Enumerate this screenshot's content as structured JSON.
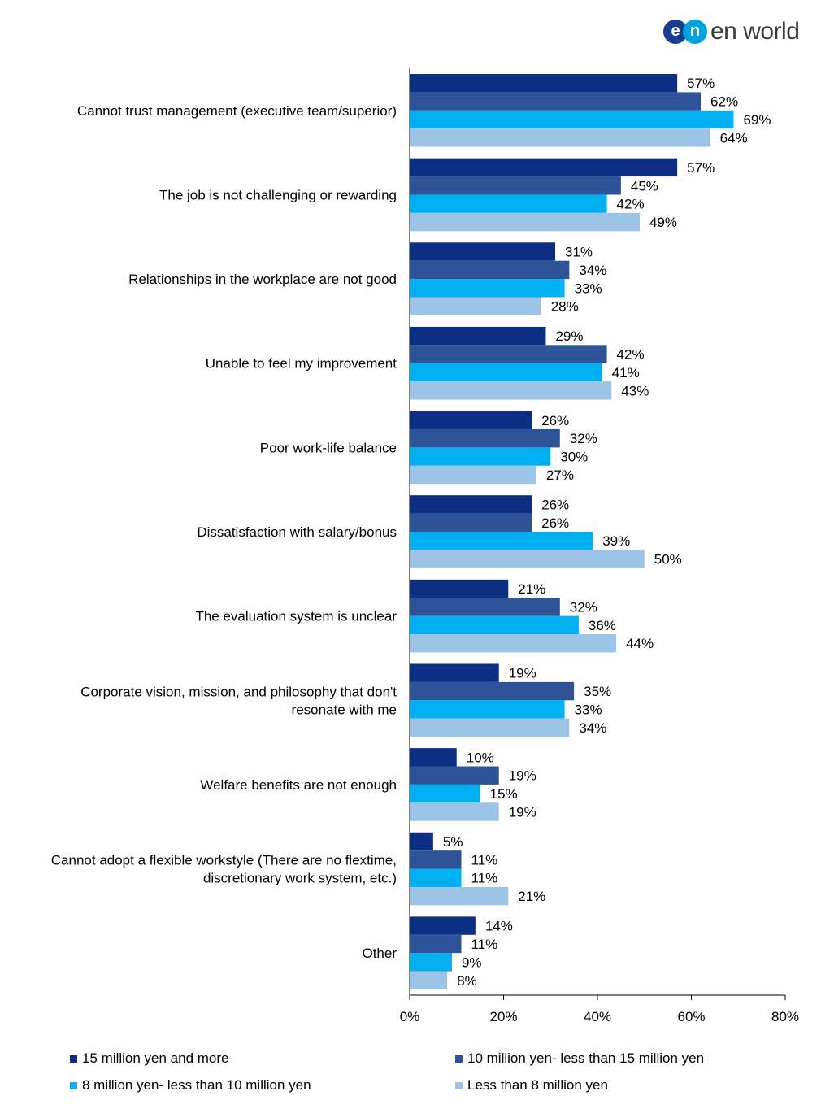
{
  "logo": {
    "mark_e": "e",
    "mark_n": "n",
    "wordmark": "en world",
    "colors": {
      "e": "#1a3c8f",
      "n": "#00a3e0"
    }
  },
  "chart_data": {
    "type": "bar",
    "orientation": "horizontal",
    "categories": [
      "Cannot trust management (executive team/superior)",
      "The job is not challenging or rewarding",
      "Relationships in the workplace are not good",
      "Unable to feel my improvement",
      "Poor work-life balance",
      "Dissatisfaction with salary/bonus",
      "The evaluation system is unclear",
      "Corporate vision, mission, and philosophy that don't resonate with me",
      "Welfare benefits are not enough",
      "Cannot adopt a flexible workstyle (There are no flextime, discretionary work system, etc.)",
      "Other"
    ],
    "category_lines": [
      [
        "Cannot trust management (executive team/superior)"
      ],
      [
        "The job is not challenging or rewarding"
      ],
      [
        "Relationships in the workplace are not good"
      ],
      [
        "Unable to feel my improvement"
      ],
      [
        "Poor work-life balance"
      ],
      [
        "Dissatisfaction with salary/bonus"
      ],
      [
        "The evaluation system is unclear"
      ],
      [
        "Corporate vision, mission, and philosophy that don't",
        "resonate with me"
      ],
      [
        "Welfare benefits are not enough"
      ],
      [
        "Cannot adopt a flexible workstyle (There are no flextime,",
        "discretionary work system, etc.)"
      ],
      [
        "Other"
      ]
    ],
    "series": [
      {
        "name": "15 million yen and more",
        "color": "#0c2f84",
        "values": [
          57,
          57,
          31,
          29,
          26,
          26,
          21,
          19,
          10,
          5,
          14
        ]
      },
      {
        "name": "10 million yen- less than 15 million yen",
        "color": "#2e5497",
        "values": [
          62,
          45,
          34,
          42,
          32,
          26,
          32,
          35,
          19,
          11,
          11
        ]
      },
      {
        "name": "8 million yen- less than 10 million yen",
        "color": "#00b0f0",
        "values": [
          69,
          42,
          33,
          41,
          30,
          39,
          36,
          33,
          15,
          11,
          9
        ]
      },
      {
        "name": "Less than 8 million yen",
        "color": "#9dc3e6",
        "values": [
          64,
          49,
          28,
          43,
          27,
          50,
          44,
          34,
          19,
          21,
          8
        ]
      }
    ],
    "xlim": [
      0,
      80
    ],
    "xticks": [
      "0%",
      "20%",
      "40%",
      "60%",
      "80%"
    ],
    "value_suffix": "%",
    "legend_position": "bottom",
    "grid": false
  }
}
